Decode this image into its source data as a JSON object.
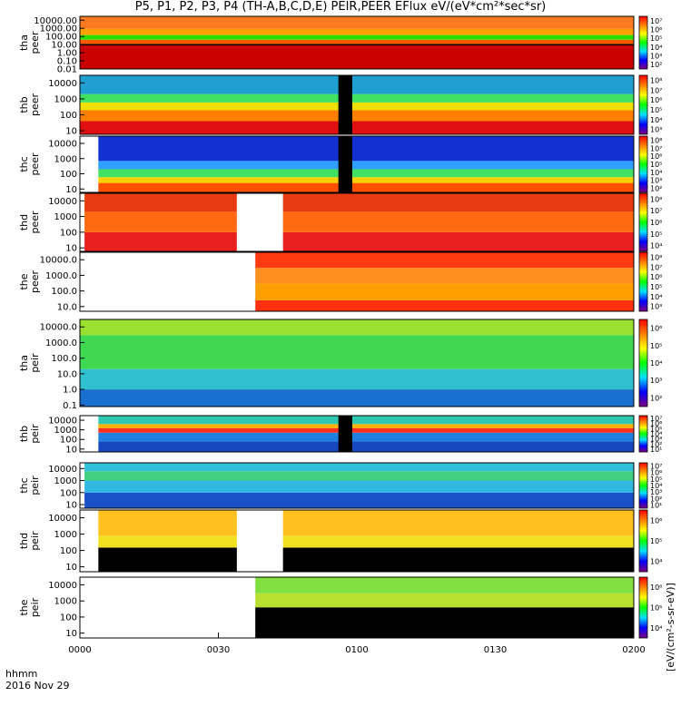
{
  "title": "P5, P1, P2, P3, P4 (TH-A,B,C,D,E) PEIR,PEER EFlux eV/(eV*cm²*sec*sr)",
  "colors": {
    "frame": "#000000",
    "gap": "#ffffff"
  },
  "chart_data": {
    "type": "heatmap",
    "time_axis": {
      "label_line1": "hhmm",
      "label_line2": "2016 Nov 29",
      "ticks": [
        "0000",
        "0030",
        "0100",
        "0130",
        "0200"
      ],
      "range_min": [
        0,
        120
      ]
    },
    "colorbar_title": "[eV/(cm²-s-sr-eV)]",
    "panels": [
      {
        "id": "tha-peer",
        "label": [
          "tha",
          "peer"
        ],
        "yticks": [
          "10000.00",
          "1000.00",
          "100.00",
          "10.00",
          "1.00",
          "0.10",
          "0.01"
        ],
        "yrange": [
          0.01,
          30000
        ],
        "log": true,
        "cbar": [
          "10⁷",
          "10⁶",
          "10⁵",
          "10⁴",
          "10³",
          "10²"
        ],
        "gaps_min": [],
        "bands": [
          {
            "lo": 0.01,
            "hi": 8,
            "color": "#c80000"
          },
          {
            "lo": 8,
            "hi": 12,
            "color": "#000000"
          },
          {
            "lo": 12,
            "hi": 40,
            "color": "#ff5a00"
          },
          {
            "lo": 40,
            "hi": 150,
            "color": "#28e000"
          },
          {
            "lo": 150,
            "hi": 900,
            "color": "#ffa000"
          },
          {
            "lo": 900,
            "hi": 30000,
            "color": "#ff7a20"
          }
        ]
      },
      {
        "id": "thb-peer",
        "label": [
          "thb",
          "peer"
        ],
        "yticks": [
          "10000",
          "1000",
          "100",
          "10"
        ],
        "yrange": [
          6,
          30000
        ],
        "log": true,
        "cbar": [
          "10⁸",
          "10⁷",
          "10⁶",
          "10⁵",
          "10⁴",
          "10³"
        ],
        "gaps_min": [],
        "black_min": [
          [
            56,
            59
          ]
        ],
        "bands": [
          {
            "lo": 6,
            "hi": 40,
            "color": "#e01010"
          },
          {
            "lo": 40,
            "hi": 200,
            "color": "#ff8000"
          },
          {
            "lo": 200,
            "hi": 600,
            "color": "#f0e000"
          },
          {
            "lo": 600,
            "hi": 2000,
            "color": "#40e060"
          },
          {
            "lo": 2000,
            "hi": 30000,
            "color": "#20a0d0"
          }
        ]
      },
      {
        "id": "thc-peer",
        "label": [
          "thc",
          "peer"
        ],
        "yticks": [
          "10000",
          "1000",
          "100",
          "10"
        ],
        "yrange": [
          6,
          30000
        ],
        "log": true,
        "cbar": [
          "10⁸",
          "10⁷",
          "10⁶",
          "10⁵",
          "10⁴",
          "10³",
          "10²"
        ],
        "gaps_min": [
          [
            0,
            4
          ]
        ],
        "black_min": [
          [
            56,
            59
          ]
        ],
        "bands": [
          {
            "lo": 6,
            "hi": 25,
            "color": "#ff5000"
          },
          {
            "lo": 25,
            "hi": 60,
            "color": "#ffd000"
          },
          {
            "lo": 60,
            "hi": 200,
            "color": "#40e060"
          },
          {
            "lo": 200,
            "hi": 700,
            "color": "#30a0ff"
          },
          {
            "lo": 700,
            "hi": 30000,
            "color": "#1030d0"
          }
        ]
      },
      {
        "id": "thd-peer",
        "label": [
          "thd",
          "peer"
        ],
        "yticks": [
          "10000",
          "1000",
          "100",
          "10"
        ],
        "yrange": [
          6,
          30000
        ],
        "log": true,
        "cbar": [
          "10⁸",
          "10⁷",
          "10⁶",
          "10⁵",
          "10⁴"
        ],
        "gaps_min": [
          [
            0,
            1
          ],
          [
            34,
            44
          ]
        ],
        "bands": [
          {
            "lo": 6,
            "hi": 100,
            "color": "#e82020"
          },
          {
            "lo": 100,
            "hi": 2000,
            "color": "#ff6a10"
          },
          {
            "lo": 2000,
            "hi": 30000,
            "color": "#e83a10"
          }
        ]
      },
      {
        "id": "the-peer",
        "label": [
          "the",
          "peer"
        ],
        "yticks": [
          "10000.0",
          "1000.0",
          "100.0",
          "10.0"
        ],
        "yrange": [
          5,
          30000
        ],
        "log": true,
        "cbar": [
          "10⁸",
          "10⁷",
          "10⁶",
          "10⁵",
          "10⁴",
          "10³"
        ],
        "gaps_min": [
          [
            0,
            38
          ]
        ],
        "bands": [
          {
            "lo": 5,
            "hi": 25,
            "color": "#ff3010"
          },
          {
            "lo": 25,
            "hi": 300,
            "color": "#ffa000"
          },
          {
            "lo": 300,
            "hi": 3000,
            "color": "#ff9020"
          },
          {
            "lo": 3000,
            "hi": 30000,
            "color": "#ff3a10"
          }
        ]
      },
      {
        "id": "tha-peir",
        "label": [
          "tha",
          "peir"
        ],
        "yticks": [
          "10000.0",
          "1000.0",
          "100.0",
          "10.0",
          "1.0",
          "0.1"
        ],
        "yrange": [
          0.08,
          30000
        ],
        "log": true,
        "cbar": [
          "10⁶",
          "10⁵",
          "10⁴",
          "10³",
          "10²"
        ],
        "gaps_min": [],
        "bands": [
          {
            "lo": 0.08,
            "hi": 1,
            "color": "#1a70d0"
          },
          {
            "lo": 1,
            "hi": 20,
            "color": "#30c0d0"
          },
          {
            "lo": 20,
            "hi": 3000,
            "color": "#40d850"
          },
          {
            "lo": 3000,
            "hi": 30000,
            "color": "#9ae030"
          }
        ]
      },
      {
        "id": "thb-peir",
        "label": [
          "thb",
          "peir"
        ],
        "yticks": [
          "10000",
          "1000",
          "100",
          "10"
        ],
        "yrange": [
          5,
          30000
        ],
        "log": true,
        "cbar": [
          "10⁷",
          "10⁶",
          "10⁵",
          "10⁴",
          "10³",
          "10²",
          "10¹"
        ],
        "gaps_min": [
          [
            0,
            4
          ]
        ],
        "black_min": [
          [
            56,
            59
          ]
        ],
        "bands": [
          {
            "lo": 5,
            "hi": 60,
            "color": "#1848c0"
          },
          {
            "lo": 60,
            "hi": 500,
            "color": "#2080e0"
          },
          {
            "lo": 500,
            "hi": 1500,
            "color": "#ff3020"
          },
          {
            "lo": 1500,
            "hi": 4000,
            "color": "#ffb000"
          },
          {
            "lo": 4000,
            "hi": 30000,
            "color": "#30c8b0"
          }
        ]
      },
      {
        "id": "thc-peir",
        "label": [
          "thc",
          "peir"
        ],
        "yticks": [
          "10000",
          "1000",
          "100",
          "10"
        ],
        "yrange": [
          5,
          30000
        ],
        "log": true,
        "cbar": [
          "10⁷",
          "10⁶",
          "10⁵",
          "10⁴",
          "10³",
          "10²",
          "10¹"
        ],
        "gaps_min": [
          [
            0,
            1
          ]
        ],
        "bands": [
          {
            "lo": 5,
            "hi": 100,
            "color": "#1a50c8"
          },
          {
            "lo": 100,
            "hi": 1000,
            "color": "#30b8e0"
          },
          {
            "lo": 1000,
            "hi": 6000,
            "color": "#40d080"
          },
          {
            "lo": 6000,
            "hi": 30000,
            "color": "#30c0d8"
          }
        ]
      },
      {
        "id": "thd-peir",
        "label": [
          "thd",
          "peir"
        ],
        "yticks": [
          "10000",
          "1000",
          "100",
          "10"
        ],
        "yrange": [
          5,
          30000
        ],
        "log": true,
        "cbar": [
          "10⁶",
          "10⁵",
          "10⁴"
        ],
        "gaps_min": [
          [
            0,
            4
          ],
          [
            34,
            44
          ]
        ],
        "bands": [
          {
            "lo": 5,
            "hi": 150,
            "color": "#000000"
          },
          {
            "lo": 150,
            "hi": 800,
            "color": "#f0e020"
          },
          {
            "lo": 800,
            "hi": 30000,
            "color": "#ffc020"
          }
        ]
      },
      {
        "id": "the-peir",
        "label": [
          "the",
          "peir"
        ],
        "yticks": [
          "10000",
          "1000",
          "100",
          "10"
        ],
        "yrange": [
          5,
          30000
        ],
        "log": true,
        "cbar": [
          "10⁶",
          "10⁵",
          "10⁴"
        ],
        "gaps_min": [
          [
            0,
            38
          ]
        ],
        "bands": [
          {
            "lo": 5,
            "hi": 400,
            "color": "#000000"
          },
          {
            "lo": 400,
            "hi": 3000,
            "color": "#b8e030"
          },
          {
            "lo": 3000,
            "hi": 30000,
            "color": "#80e040"
          }
        ]
      }
    ]
  }
}
